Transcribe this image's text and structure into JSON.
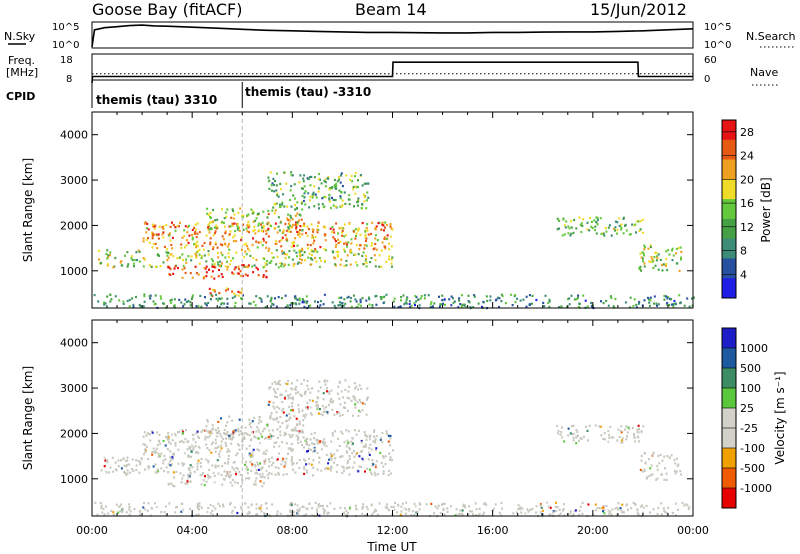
{
  "header": {
    "station": "Goose Bay (fitACF)",
    "beam": "Beam 14",
    "date": "15/Jun/2012"
  },
  "colors": {
    "axis": "#000000",
    "ground_scatter": "#c8c8be",
    "power_scale": [
      "#1e1ee6",
      "#2850a0",
      "#3c8c78",
      "#46a046",
      "#64c83c",
      "#f0dc28",
      "#f0a020",
      "#e65a14",
      "#e61414"
    ],
    "velocity_scale": [
      "#e60000",
      "#f05a00",
      "#f0a000",
      "#d2d2c8",
      "#d2d2c8",
      "#5ac83c",
      "#3c8c64",
      "#1e5aa0",
      "#1e1ec8"
    ]
  },
  "chart_data": [
    {
      "type": "line",
      "panel": "summary",
      "left_label": "N.Sky",
      "right_label": "N.Search",
      "left_ticks": [
        "10^5",
        "10^0"
      ],
      "right_ticks": [
        "10^5",
        "10^0"
      ],
      "xlim": [
        0,
        24
      ],
      "series": [
        {
          "name": "N.Sky",
          "x": [
            0.0,
            0.1,
            0.3,
            0.5,
            1,
            1.5,
            2,
            2.5,
            3,
            4,
            5,
            6,
            7,
            8,
            9,
            10,
            11,
            12,
            13,
            14,
            15,
            16,
            17,
            18,
            19,
            20,
            21,
            22,
            23,
            23.5,
            24
          ],
          "y_frac": [
            0.05,
            0.7,
            0.74,
            0.78,
            0.82,
            0.86,
            0.88,
            0.85,
            0.84,
            0.8,
            0.76,
            0.72,
            0.68,
            0.66,
            0.64,
            0.62,
            0.6,
            0.6,
            0.59,
            0.58,
            0.58,
            0.6,
            0.6,
            0.61,
            0.62,
            0.62,
            0.64,
            0.66,
            0.7,
            0.72,
            0.74
          ]
        }
      ]
    },
    {
      "type": "line",
      "panel": "frequency",
      "left_label": "Freq.",
      "left_unit": "[MHz]",
      "right_label": "Nave",
      "left_ticks": [
        "18",
        "8"
      ],
      "right_ticks": [
        "60",
        "0"
      ],
      "xlim": [
        0,
        24
      ],
      "series": [
        {
          "name": "Freq.",
          "x": [
            0,
            0.02,
            12,
            12.02,
            21.8,
            21.82,
            24
          ],
          "y": [
            8,
            10.5,
            10.5,
            16,
            16,
            10.5,
            10.5
          ]
        },
        {
          "name": "Nave",
          "x": [
            0,
            24
          ],
          "y": [
            10,
            10
          ]
        }
      ]
    },
    {
      "type": "table",
      "panel": "cpid",
      "label": "CPID",
      "segments": [
        {
          "start": 0.0,
          "end": 6.0,
          "text": "themis (tau) 3310"
        },
        {
          "start": 6.0,
          "end": 24.0,
          "text": "themis (tau) -3310"
        }
      ]
    },
    {
      "type": "heatmap",
      "panel": "power",
      "xlabel": "",
      "ylabel": "Slant Range [km]",
      "xlim": [
        0,
        24
      ],
      "ylim": [
        180,
        4500
      ],
      "yticks": [
        1000,
        2000,
        3000,
        4000
      ],
      "colorbar_label": "Power [dB]",
      "colorbar_ticks": [
        4,
        8,
        12,
        16,
        20,
        24,
        28
      ],
      "colorbar_range": [
        0,
        30
      ],
      "scatter_regions": [
        {
          "t0": 0.2,
          "t1": 12.0,
          "r0": 1100,
          "r1": 1500,
          "level": 0.55
        },
        {
          "t0": 2.0,
          "t1": 12.0,
          "r0": 1500,
          "r1": 2100,
          "level": 0.75
        },
        {
          "t0": 4.5,
          "t1": 8.5,
          "r0": 1900,
          "r1": 2400,
          "level": 0.6
        },
        {
          "t0": 3.0,
          "t1": 7.0,
          "r0": 850,
          "r1": 1150,
          "level": 0.95
        },
        {
          "t0": 4.5,
          "t1": 6.0,
          "r0": 450,
          "r1": 650,
          "level": 0.8
        },
        {
          "t0": 7.0,
          "t1": 11.0,
          "r0": 2400,
          "r1": 3200,
          "level": 0.4
        },
        {
          "t0": 18.5,
          "t1": 22.0,
          "r0": 1800,
          "r1": 2200,
          "level": 0.45
        },
        {
          "t0": 21.8,
          "t1": 23.5,
          "r0": 1000,
          "r1": 1600,
          "level": 0.5
        },
        {
          "t0": 0.0,
          "t1": 24.0,
          "r0": 200,
          "r1": 500,
          "level": 0.3
        }
      ]
    },
    {
      "type": "heatmap",
      "panel": "velocity",
      "xlabel": "Time UT",
      "ylabel": "Slant Range [km]",
      "xlim": [
        0,
        24
      ],
      "ylim": [
        180,
        4500
      ],
      "yticks": [
        1000,
        2000,
        3000,
        4000
      ],
      "xticks": [
        "00:00",
        "04:00",
        "08:00",
        "12:00",
        "16:00",
        "20:00",
        "00:00"
      ],
      "colorbar_label": "Velocity [m s⁻¹]",
      "colorbar_ticks": [
        "1000",
        "500",
        "100",
        "25",
        "-25",
        "-100",
        "-500",
        "-1000"
      ],
      "scatter_regions": [
        {
          "t0": 0.2,
          "t1": 12.0,
          "r0": 1100,
          "r1": 1500,
          "level": 0.5
        },
        {
          "t0": 2.0,
          "t1": 12.0,
          "r0": 1500,
          "r1": 2100,
          "level": 0.5
        },
        {
          "t0": 4.5,
          "t1": 8.5,
          "r0": 1900,
          "r1": 2400,
          "level": 0.5
        },
        {
          "t0": 3.0,
          "t1": 7.0,
          "r0": 850,
          "r1": 1150,
          "level": 0.5
        },
        {
          "t0": 7.0,
          "t1": 11.0,
          "r0": 2400,
          "r1": 3200,
          "level": 0.5
        },
        {
          "t0": 18.5,
          "t1": 22.0,
          "r0": 1800,
          "r1": 2200,
          "level": 0.5
        },
        {
          "t0": 21.8,
          "t1": 23.5,
          "r0": 1000,
          "r1": 1600,
          "level": 0.5
        },
        {
          "t0": 0.0,
          "t1": 24.0,
          "r0": 200,
          "r1": 500,
          "level": 0.5
        }
      ]
    }
  ]
}
